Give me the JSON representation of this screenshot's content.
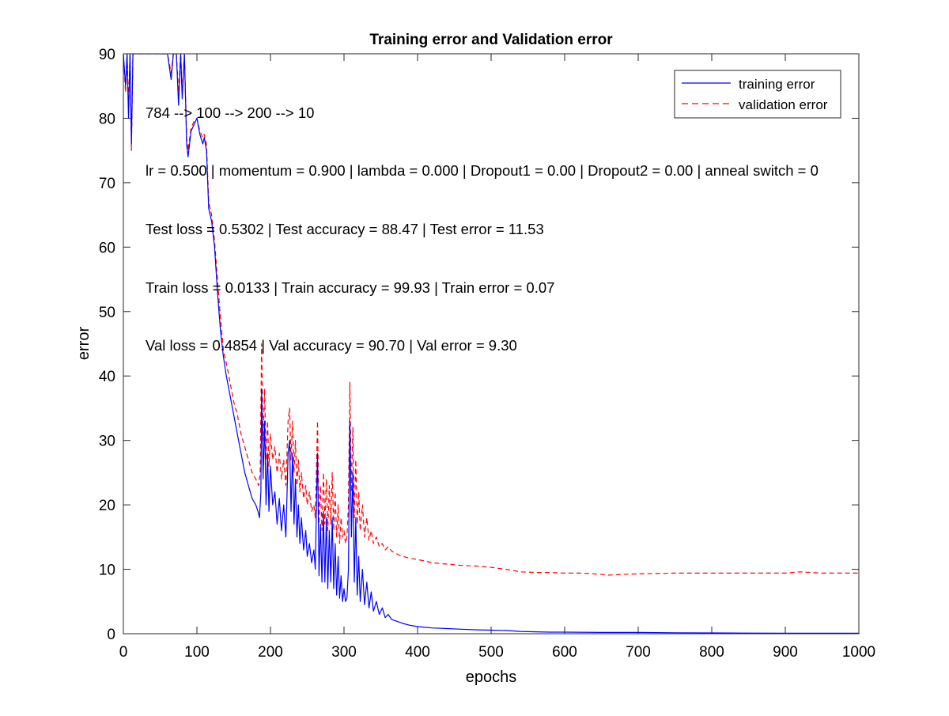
{
  "chart_data": {
    "type": "line",
    "title": "Training error and Validation error",
    "xlabel": "epochs",
    "ylabel": "error",
    "xlim": [
      0,
      1000
    ],
    "ylim": [
      0,
      90
    ],
    "xticks": [
      0,
      100,
      200,
      300,
      400,
      500,
      600,
      700,
      800,
      900,
      1000
    ],
    "yticks": [
      0,
      10,
      20,
      30,
      40,
      50,
      60,
      70,
      80,
      90
    ],
    "legend_position": "top-right",
    "annotations": [
      "784 --> 100 --> 200 --> 10",
      "lr = 0.500 | momentum = 0.900 | lambda = 0.000 | Dropout1 = 0.00 | Dropout2 = 0.00 | anneal switch = 0",
      "Test loss = 0.5302 | Test accuracy = 88.47 | Test error = 11.53",
      "Train loss = 0.0133 | Train accuracy = 99.93 | Train error = 0.07",
      "Val loss = 0.4854 | Val accuracy = 90.70 | Val error = 9.30"
    ],
    "series": [
      {
        "name": "training error",
        "color": "#0000ff",
        "style": "solid",
        "points": [
          [
            0,
            90
          ],
          [
            3,
            85
          ],
          [
            5,
            90
          ],
          [
            7,
            80
          ],
          [
            9,
            90
          ],
          [
            11,
            76
          ],
          [
            13,
            90
          ],
          [
            20,
            90
          ],
          [
            30,
            90
          ],
          [
            40,
            90
          ],
          [
            50,
            90
          ],
          [
            60,
            90
          ],
          [
            65,
            86
          ],
          [
            68,
            90
          ],
          [
            72,
            90
          ],
          [
            75,
            82
          ],
          [
            78,
            90
          ],
          [
            80,
            83
          ],
          [
            83,
            90
          ],
          [
            86,
            76
          ],
          [
            88,
            74
          ],
          [
            92,
            78
          ],
          [
            96,
            79
          ],
          [
            100,
            80
          ],
          [
            104,
            77.5
          ],
          [
            108,
            76
          ],
          [
            110,
            77
          ],
          [
            113,
            75
          ],
          [
            116,
            66
          ],
          [
            118,
            65
          ],
          [
            120,
            64
          ],
          [
            124,
            60
          ],
          [
            128,
            53
          ],
          [
            132,
            47
          ],
          [
            136,
            43
          ],
          [
            140,
            40
          ],
          [
            145,
            37
          ],
          [
            150,
            34
          ],
          [
            155,
            31
          ],
          [
            160,
            28
          ],
          [
            165,
            25
          ],
          [
            170,
            23
          ],
          [
            175,
            21
          ],
          [
            180,
            20
          ],
          [
            183,
            19
          ],
          [
            185,
            18
          ],
          [
            187,
            22
          ],
          [
            188,
            38
          ],
          [
            190,
            24
          ],
          [
            192,
            33
          ],
          [
            194,
            20
          ],
          [
            196,
            28
          ],
          [
            198,
            19
          ],
          [
            200,
            26
          ],
          [
            203,
            20
          ],
          [
            206,
            22
          ],
          [
            209,
            17
          ],
          [
            212,
            21
          ],
          [
            215,
            16
          ],
          [
            218,
            20
          ],
          [
            221,
            15
          ],
          [
            224,
            28
          ],
          [
            226,
            30
          ],
          [
            228,
            19
          ],
          [
            230,
            28
          ],
          [
            232,
            17
          ],
          [
            234,
            24
          ],
          [
            236,
            15
          ],
          [
            238,
            20
          ],
          [
            240,
            14
          ],
          [
            242,
            18
          ],
          [
            245,
            13
          ],
          [
            248,
            16
          ],
          [
            250,
            12
          ],
          [
            253,
            14
          ],
          [
            256,
            11
          ],
          [
            259,
            13
          ],
          [
            261,
            10
          ],
          [
            263,
            23
          ],
          [
            264,
            28
          ],
          [
            266,
            9
          ],
          [
            268,
            17
          ],
          [
            270,
            8
          ],
          [
            272,
            19
          ],
          [
            274,
            8
          ],
          [
            276,
            18
          ],
          [
            278,
            7
          ],
          [
            280,
            16
          ],
          [
            282,
            8
          ],
          [
            284,
            18
          ],
          [
            286,
            7
          ],
          [
            288,
            14
          ],
          [
            290,
            6
          ],
          [
            292,
            12
          ],
          [
            294,
            5.5
          ],
          [
            296,
            9
          ],
          [
            298,
            5
          ],
          [
            300,
            7
          ],
          [
            302,
            5
          ],
          [
            304,
            5.5
          ],
          [
            306,
            10
          ],
          [
            308,
            33
          ],
          [
            310,
            15
          ],
          [
            312,
            25
          ],
          [
            314,
            8
          ],
          [
            316,
            18
          ],
          [
            318,
            6
          ],
          [
            320,
            12
          ],
          [
            322,
            5
          ],
          [
            325,
            10
          ],
          [
            328,
            4.5
          ],
          [
            331,
            8
          ],
          [
            334,
            4
          ],
          [
            337,
            6.5
          ],
          [
            340,
            3.5
          ],
          [
            344,
            5
          ],
          [
            348,
            3
          ],
          [
            352,
            4
          ],
          [
            356,
            2.5
          ],
          [
            360,
            3
          ],
          [
            365,
            2.2
          ],
          [
            370,
            2
          ],
          [
            375,
            1.8
          ],
          [
            380,
            1.6
          ],
          [
            390,
            1.3
          ],
          [
            400,
            1.1
          ],
          [
            410,
            1.0
          ],
          [
            420,
            0.9
          ],
          [
            440,
            0.8
          ],
          [
            460,
            0.7
          ],
          [
            480,
            0.6
          ],
          [
            500,
            0.55
          ],
          [
            520,
            0.5
          ],
          [
            540,
            0.35
          ],
          [
            560,
            0.3
          ],
          [
            580,
            0.25
          ],
          [
            600,
            0.25
          ],
          [
            650,
            0.2
          ],
          [
            700,
            0.2
          ],
          [
            750,
            0.15
          ],
          [
            800,
            0.12
          ],
          [
            850,
            0.1
          ],
          [
            900,
            0.08
          ],
          [
            950,
            0.07
          ],
          [
            1000,
            0.07
          ]
        ]
      },
      {
        "name": "validation error",
        "color": "#ff0000",
        "style": "dashed",
        "points": [
          [
            0,
            90
          ],
          [
            3,
            84
          ],
          [
            5,
            90
          ],
          [
            7,
            82
          ],
          [
            9,
            90
          ],
          [
            11,
            75
          ],
          [
            13,
            90
          ],
          [
            20,
            90
          ],
          [
            30,
            90
          ],
          [
            40,
            90
          ],
          [
            50,
            90
          ],
          [
            60,
            90
          ],
          [
            65,
            87
          ],
          [
            68,
            90
          ],
          [
            72,
            90
          ],
          [
            75,
            84
          ],
          [
            78,
            90
          ],
          [
            80,
            84
          ],
          [
            83,
            90
          ],
          [
            86,
            77
          ],
          [
            88,
            75
          ],
          [
            92,
            78.5
          ],
          [
            96,
            79.5
          ],
          [
            100,
            80
          ],
          [
            104,
            78
          ],
          [
            108,
            77
          ],
          [
            110,
            77.5
          ],
          [
            113,
            76
          ],
          [
            116,
            67
          ],
          [
            118,
            66
          ],
          [
            120,
            65
          ],
          [
            124,
            61
          ],
          [
            128,
            55
          ],
          [
            132,
            49
          ],
          [
            136,
            44
          ],
          [
            140,
            42
          ],
          [
            145,
            39
          ],
          [
            150,
            36
          ],
          [
            155,
            34
          ],
          [
            160,
            31
          ],
          [
            165,
            29
          ],
          [
            170,
            27
          ],
          [
            175,
            25
          ],
          [
            180,
            24
          ],
          [
            184,
            23
          ],
          [
            186,
            25
          ],
          [
            188,
            45
          ],
          [
            190,
            30
          ],
          [
            192,
            38
          ],
          [
            194,
            27
          ],
          [
            196,
            33
          ],
          [
            198,
            26
          ],
          [
            200,
            31
          ],
          [
            203,
            27
          ],
          [
            206,
            29
          ],
          [
            209,
            25
          ],
          [
            212,
            28
          ],
          [
            215,
            24
          ],
          [
            218,
            27
          ],
          [
            221,
            23
          ],
          [
            224,
            33
          ],
          [
            226,
            35
          ],
          [
            228,
            27
          ],
          [
            230,
            33
          ],
          [
            232,
            25
          ],
          [
            234,
            30
          ],
          [
            236,
            23
          ],
          [
            238,
            27
          ],
          [
            240,
            22
          ],
          [
            242,
            25
          ],
          [
            245,
            21
          ],
          [
            248,
            23
          ],
          [
            250,
            20
          ],
          [
            253,
            22
          ],
          [
            256,
            19
          ],
          [
            259,
            20
          ],
          [
            261,
            18
          ],
          [
            263,
            28
          ],
          [
            264,
            33
          ],
          [
            266,
            17
          ],
          [
            268,
            23
          ],
          [
            270,
            16
          ],
          [
            272,
            25
          ],
          [
            274,
            17
          ],
          [
            276,
            24
          ],
          [
            278,
            16
          ],
          [
            280,
            23
          ],
          [
            282,
            17
          ],
          [
            284,
            25
          ],
          [
            286,
            16
          ],
          [
            288,
            22
          ],
          [
            290,
            15
          ],
          [
            292,
            20
          ],
          [
            294,
            14
          ],
          [
            296,
            18
          ],
          [
            298,
            15
          ],
          [
            300,
            16
          ],
          [
            302,
            14
          ],
          [
            304,
            15
          ],
          [
            306,
            20
          ],
          [
            308,
            39
          ],
          [
            310,
            22
          ],
          [
            312,
            32
          ],
          [
            314,
            18
          ],
          [
            316,
            27
          ],
          [
            318,
            17
          ],
          [
            320,
            22
          ],
          [
            322,
            16
          ],
          [
            325,
            20
          ],
          [
            328,
            15
          ],
          [
            331,
            18
          ],
          [
            334,
            14.5
          ],
          [
            337,
            16
          ],
          [
            340,
            14
          ],
          [
            344,
            15
          ],
          [
            348,
            13.5
          ],
          [
            352,
            14
          ],
          [
            356,
            13
          ],
          [
            360,
            13.5
          ],
          [
            365,
            12.8
          ],
          [
            370,
            12.5
          ],
          [
            375,
            12.2
          ],
          [
            380,
            12
          ],
          [
            390,
            11.7
          ],
          [
            400,
            11.5
          ],
          [
            410,
            11.3
          ],
          [
            420,
            11
          ],
          [
            440,
            10.8
          ],
          [
            460,
            10.6
          ],
          [
            480,
            10.5
          ],
          [
            500,
            10.3
          ],
          [
            520,
            10
          ],
          [
            540,
            9.6
          ],
          [
            560,
            9.5
          ],
          [
            580,
            9.5
          ],
          [
            600,
            9.4
          ],
          [
            620,
            9.4
          ],
          [
            640,
            9.3
          ],
          [
            660,
            9.1
          ],
          [
            680,
            9.2
          ],
          [
            700,
            9.3
          ],
          [
            750,
            9.4
          ],
          [
            800,
            9.4
          ],
          [
            850,
            9.4
          ],
          [
            900,
            9.4
          ],
          [
            920,
            9.6
          ],
          [
            950,
            9.4
          ],
          [
            1000,
            9.4
          ]
        ]
      }
    ]
  }
}
